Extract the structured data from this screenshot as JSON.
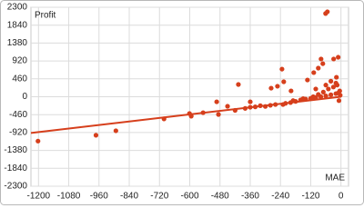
{
  "chart_data": {
    "type": "scatter",
    "x_label": "MAE",
    "y_label": "Profit",
    "color": "#d63f1c",
    "grid": true,
    "xlim": [
      -1230,
      30
    ],
    "ylim": [
      -2300,
      2300
    ],
    "xticks": [
      -1200,
      -1080,
      -960,
      -840,
      -720,
      -600,
      -480,
      -360,
      -240,
      -120,
      0
    ],
    "yticks": [
      2300,
      1840,
      1380,
      920,
      460,
      0,
      -460,
      -920,
      -1380,
      -1840,
      -2300
    ],
    "x": [
      -1202,
      -972,
      -893,
      -702,
      -601,
      -594,
      -547,
      -493,
      -486,
      -450,
      -407,
      -360,
      -360,
      -277,
      -252,
      -234,
      -198,
      -227,
      -133,
      -108,
      -90,
      -79,
      -72,
      -61,
      -54,
      -29,
      -11,
      -18,
      -230,
      -200,
      -180,
      -160,
      -140,
      -120,
      -100,
      -80,
      -60,
      -40,
      -20,
      -10,
      -300,
      -280,
      -260,
      -220,
      -190,
      -150,
      -110,
      -90,
      -70,
      -50,
      -30,
      -15,
      -5,
      -100,
      -60,
      -40,
      -20,
      -320,
      -340,
      -380,
      -420,
      -8,
      -3
    ],
    "values": [
      -1140,
      -990,
      -875,
      -570,
      -430,
      -500,
      -410,
      -130,
      -455,
      -245,
      315,
      -130,
      -270,
      220,
      270,
      710,
      150,
      385,
      430,
      620,
      735,
      970,
      850,
      2140,
      2185,
      970,
      1015,
      500,
      -200,
      -150,
      -120,
      -80,
      -60,
      -40,
      -20,
      0,
      20,
      50,
      80,
      100,
      -250,
      -220,
      -200,
      -170,
      -100,
      -50,
      0,
      60,
      120,
      200,
      250,
      300,
      150,
      200,
      300,
      400,
      350,
      -230,
      -260,
      -300,
      -350,
      -100,
      40
    ],
    "trendline": {
      "x": [
        -1230,
        0
      ],
      "y": [
        -930,
        0
      ]
    }
  }
}
